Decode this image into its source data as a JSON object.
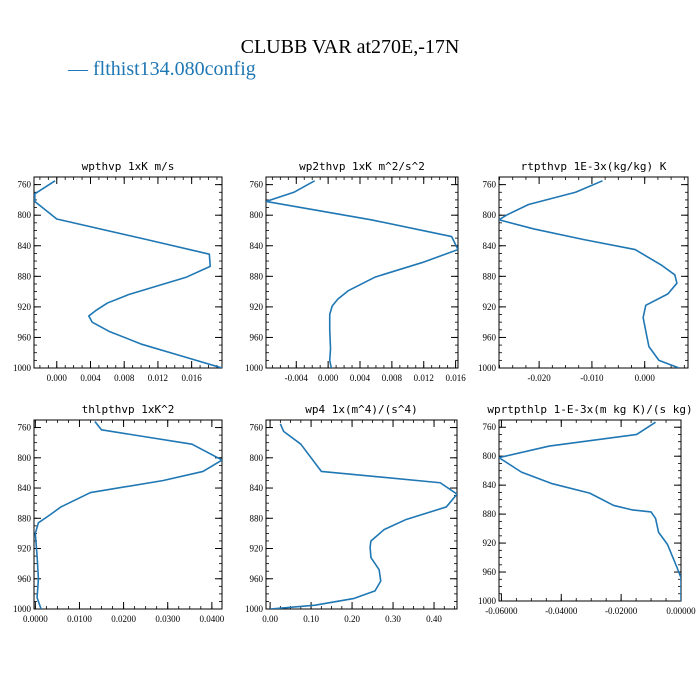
{
  "page": {
    "title": "CLUBB VAR at270E,-17N",
    "legend_label": "flthist134.080config",
    "line_color": "#1f77b4"
  },
  "chart_data": [
    {
      "type": "line",
      "title": "wpthvp  1xK m/s",
      "xlim": [
        -0.0027,
        0.0196
      ],
      "ylim": [
        1000,
        750
      ],
      "xticks": [
        0.0,
        0.004,
        0.008,
        0.012,
        0.016
      ],
      "xtick_labels": [
        "0.000",
        "0.004",
        "0.008",
        "0.012",
        "0.016"
      ],
      "yticks": [
        760,
        800,
        840,
        880,
        920,
        960,
        1000
      ],
      "series": [
        {
          "points": [
            [
              -0.0002,
              755
            ],
            [
              -0.0026,
              772
            ],
            [
              -0.0026,
              782
            ],
            [
              0.0,
              805
            ],
            [
              0.0107,
              832
            ],
            [
              0.0181,
              851
            ],
            [
              0.0182,
              867
            ],
            [
              0.0154,
              881
            ],
            [
              0.0085,
              904
            ],
            [
              0.006,
              915
            ],
            [
              0.0046,
              925
            ],
            [
              0.0038,
              932
            ],
            [
              0.0042,
              940
            ],
            [
              0.0062,
              952
            ],
            [
              0.0101,
              969
            ],
            [
              0.015,
              985
            ],
            [
              0.0196,
              1000
            ]
          ]
        }
      ]
    },
    {
      "type": "line",
      "title": "wp2thvp  1xK m^2/s^2",
      "xlim": [
        -0.0078,
        0.0163
      ],
      "ylim": [
        1000,
        750
      ],
      "xticks": [
        -0.004,
        0.0,
        0.004,
        0.008,
        0.012,
        0.016
      ],
      "xtick_labels": [
        "-0.004",
        "0.000",
        "0.004",
        "0.008",
        "0.012",
        "0.016"
      ],
      "yticks": [
        760,
        800,
        840,
        880,
        920,
        960,
        1000
      ],
      "series": [
        {
          "points": [
            [
              -0.0017,
              755
            ],
            [
              -0.0043,
              770
            ],
            [
              -0.0078,
              782
            ],
            [
              0.0054,
              806
            ],
            [
              0.0155,
              828
            ],
            [
              0.0163,
              845
            ],
            [
              0.0118,
              862
            ],
            [
              0.0059,
              881
            ],
            [
              0.0025,
              899
            ],
            [
              0.0012,
              910
            ],
            [
              0.0005,
              919
            ],
            [
              0.0002,
              930
            ],
            [
              0.0002,
              950
            ],
            [
              0.0003,
              975
            ],
            [
              0.0002,
              990
            ],
            [
              0.0004,
              1000
            ]
          ]
        }
      ]
    },
    {
      "type": "line",
      "title": "rtpthvp  1E-3x(kg/kg) K",
      "xlim": [
        -0.0276,
        0.0082
      ],
      "ylim": [
        1000,
        750
      ],
      "xticks": [
        -0.02,
        -0.01,
        0.0
      ],
      "xtick_labels": [
        "-0.020",
        "-0.010",
        "0.000"
      ],
      "yticks": [
        760,
        800,
        840,
        880,
        920,
        960,
        1000
      ],
      "series": [
        {
          "points": [
            [
              -0.008,
              755
            ],
            [
              -0.0131,
              770
            ],
            [
              -0.022,
              786
            ],
            [
              -0.0262,
              800
            ],
            [
              -0.0276,
              806
            ],
            [
              -0.021,
              818
            ],
            [
              -0.0115,
              832
            ],
            [
              -0.0018,
              845
            ],
            [
              0.0033,
              866
            ],
            [
              0.0057,
              878
            ],
            [
              0.0061,
              889
            ],
            [
              0.0044,
              903
            ],
            [
              0.0002,
              918
            ],
            [
              -0.0003,
              934
            ],
            [
              0.0003,
              955
            ],
            [
              0.0008,
              972
            ],
            [
              0.0027,
              990
            ],
            [
              0.0065,
              1000
            ]
          ]
        }
      ]
    },
    {
      "type": "line",
      "title": "thlpthvp  1xK^2",
      "xlim": [
        -0.0003,
        0.0423
      ],
      "ylim": [
        1000,
        750
      ],
      "xticks": [
        0.0,
        0.01,
        0.02,
        0.03,
        0.04
      ],
      "xtick_labels": [
        "0.0000",
        "0.0100",
        "0.0200",
        "0.0300",
        "0.0400"
      ],
      "yticks": [
        760,
        800,
        840,
        880,
        920,
        960,
        1000
      ],
      "series": [
        {
          "points": [
            [
              0.0135,
              752
            ],
            [
              0.015,
              763
            ],
            [
              0.0355,
              782
            ],
            [
              0.0423,
              803
            ],
            [
              0.038,
              818
            ],
            [
              0.029,
              830
            ],
            [
              0.0125,
              846
            ],
            [
              0.0058,
              865
            ],
            [
              0.0032,
              876
            ],
            [
              0.0007,
              886
            ],
            [
              0.0,
              900
            ],
            [
              0.0004,
              930
            ],
            [
              0.0007,
              960
            ],
            [
              0.0004,
              985
            ],
            [
              0.0013,
              1000
            ]
          ]
        }
      ]
    },
    {
      "type": "line",
      "title": "wp4  1x(m^4)/(s^4)",
      "xlim": [
        -0.01,
        0.456
      ],
      "ylim": [
        1000,
        750
      ],
      "xticks": [
        0.0,
        0.1,
        0.2,
        0.3,
        0.4
      ],
      "xtick_labels": [
        "0.00",
        "0.10",
        "0.20",
        "0.30",
        "0.40"
      ],
      "yticks": [
        760,
        800,
        840,
        880,
        920,
        960,
        1000
      ],
      "series": [
        {
          "points": [
            [
              0.025,
              755
            ],
            [
              0.033,
              765
            ],
            [
              0.075,
              782
            ],
            [
              0.125,
              818
            ],
            [
              0.415,
              833
            ],
            [
              0.456,
              848
            ],
            [
              0.43,
              865
            ],
            [
              0.33,
              882
            ],
            [
              0.278,
              895
            ],
            [
              0.246,
              910
            ],
            [
              0.244,
              918
            ],
            [
              0.246,
              932
            ],
            [
              0.266,
              948
            ],
            [
              0.27,
              963
            ],
            [
              0.256,
              976
            ],
            [
              0.205,
              986
            ],
            [
              0.11,
              995
            ],
            [
              0.0,
              1000
            ]
          ]
        }
      ]
    },
    {
      "type": "line",
      "title": "wprtpthlp  1-E-3x(m kg K)/(s kg)",
      "xlim": [
        -0.0608,
        0.0
      ],
      "ylim": [
        1000,
        750
      ],
      "xticks": [
        -0.06,
        -0.04,
        -0.02,
        0.0
      ],
      "xtick_labels": [
        "-0.06000",
        "-0.04000",
        "-0.02000",
        "0.00000"
      ],
      "yticks": [
        760,
        800,
        840,
        880,
        920,
        960,
        1000
      ],
      "series": [
        {
          "points": [
            [
              -0.0085,
              753
            ],
            [
              -0.0148,
              770
            ],
            [
              -0.044,
              786
            ],
            [
              -0.0608,
              802
            ],
            [
              -0.0533,
              822
            ],
            [
              -0.043,
              838
            ],
            [
              -0.0305,
              851
            ],
            [
              -0.0225,
              868
            ],
            [
              -0.0165,
              874
            ],
            [
              -0.01,
              877
            ],
            [
              -0.0085,
              886
            ],
            [
              -0.0075,
              905
            ],
            [
              -0.0045,
              922
            ],
            [
              -0.0015,
              952
            ],
            [
              0.0,
              968
            ],
            [
              0.0,
              1000
            ]
          ]
        }
      ]
    }
  ]
}
